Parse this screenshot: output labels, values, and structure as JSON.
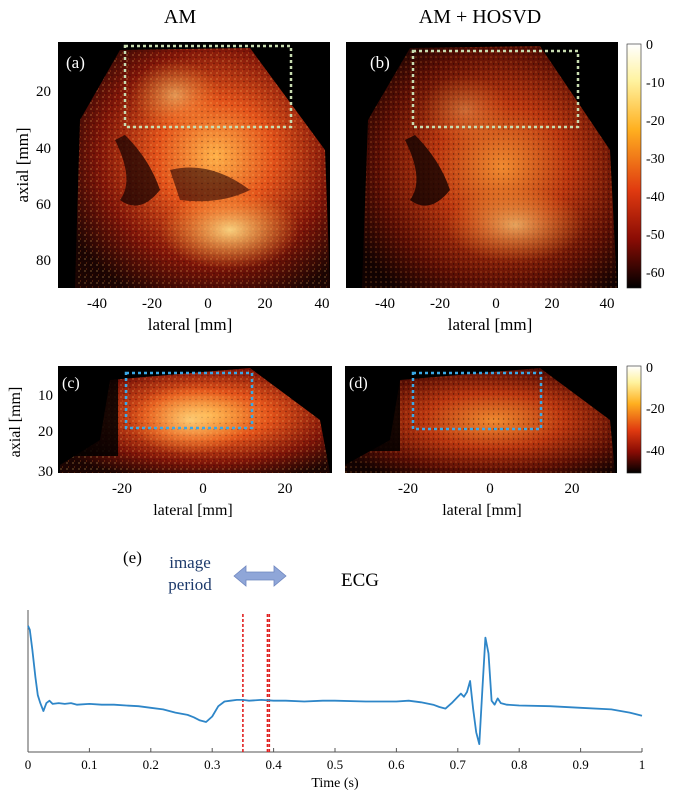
{
  "columns": {
    "left_title": "AM",
    "right_title": "AM + HOSVD"
  },
  "panels": {
    "a": "(a)",
    "b": "(b)",
    "c": "(c)",
    "d": "(d)",
    "e": "(e)"
  },
  "axes": {
    "axial_label": "axial [mm]",
    "lateral_label": "lateral [mm]",
    "top_y_ticks": [
      "20",
      "40",
      "60",
      "80"
    ],
    "top_x_ticks": [
      "-40",
      "-20",
      "0",
      "20",
      "40"
    ],
    "mid_y_ticks": [
      "10",
      "20",
      "30"
    ],
    "mid_x_ticks": [
      "-20",
      "0",
      "20"
    ]
  },
  "colorbars": {
    "top_ticks": [
      "0",
      "-10",
      "-20",
      "-30",
      "-40",
      "-50",
      "-60"
    ],
    "mid_ticks": [
      "0",
      "-20",
      "-40"
    ]
  },
  "colors": {
    "ecg_line": "#2e86c8",
    "marker": "#e02020",
    "top_roi": "#c8dcb0",
    "mid_roi": "#3aa8e6",
    "arrow": "#8fa6d8"
  },
  "ecg": {
    "title": "ECG",
    "image_period_label": [
      "image",
      "period"
    ],
    "xlabel": "Time (s)",
    "x_ticks": [
      "0",
      "0.1",
      "0.2",
      "0.3",
      "0.4",
      "0.5",
      "0.6",
      "0.7",
      "0.8",
      "0.9",
      "1"
    ]
  },
  "chart_data": {
    "type": "line",
    "title": "ECG",
    "xlabel": "Time (s)",
    "ylabel": "",
    "xlim": [
      0,
      1
    ],
    "ylim": [
      -0.6,
      1.2
    ],
    "markers_x": [
      0.35,
      0.39,
      0.393
    ],
    "series": [
      {
        "x": [
          0,
          0.003,
          0.007,
          0.012,
          0.016,
          0.02,
          0.025,
          0.03,
          0.035,
          0.04,
          0.05,
          0.06,
          0.07,
          0.08,
          0.1,
          0.12,
          0.14,
          0.16,
          0.18,
          0.2,
          0.22,
          0.24,
          0.26,
          0.27,
          0.28,
          0.29,
          0.3,
          0.31,
          0.32,
          0.33,
          0.34,
          0.35,
          0.36,
          0.38,
          0.4,
          0.42,
          0.45,
          0.48,
          0.5,
          0.55,
          0.6,
          0.62,
          0.64,
          0.66,
          0.67,
          0.68,
          0.69,
          0.7,
          0.705,
          0.71,
          0.715,
          0.72,
          0.725,
          0.73,
          0.735,
          0.74,
          0.745,
          0.75,
          0.755,
          0.76,
          0.765,
          0.77,
          0.78,
          0.8,
          0.85,
          0.9,
          0.95,
          0.98,
          1.0
        ],
        "y": [
          1.0,
          0.95,
          0.7,
          0.35,
          0.12,
          0.02,
          -0.08,
          0.02,
          0.05,
          0.01,
          0.02,
          0.01,
          0.02,
          0.0,
          0.01,
          0.0,
          0.0,
          -0.01,
          -0.02,
          -0.04,
          -0.06,
          -0.1,
          -0.13,
          -0.16,
          -0.2,
          -0.22,
          -0.15,
          -0.02,
          0.04,
          0.05,
          0.06,
          0.06,
          0.05,
          0.06,
          0.05,
          0.05,
          0.04,
          0.05,
          0.05,
          0.04,
          0.04,
          0.05,
          0.03,
          0.0,
          -0.03,
          -0.05,
          0.02,
          0.1,
          0.14,
          0.1,
          0.16,
          0.3,
          -0.05,
          -0.35,
          -0.5,
          0.2,
          0.85,
          0.65,
          0.05,
          0.0,
          0.08,
          0.02,
          0.0,
          -0.01,
          -0.02,
          -0.04,
          -0.06,
          -0.1,
          -0.14
        ]
      }
    ]
  }
}
